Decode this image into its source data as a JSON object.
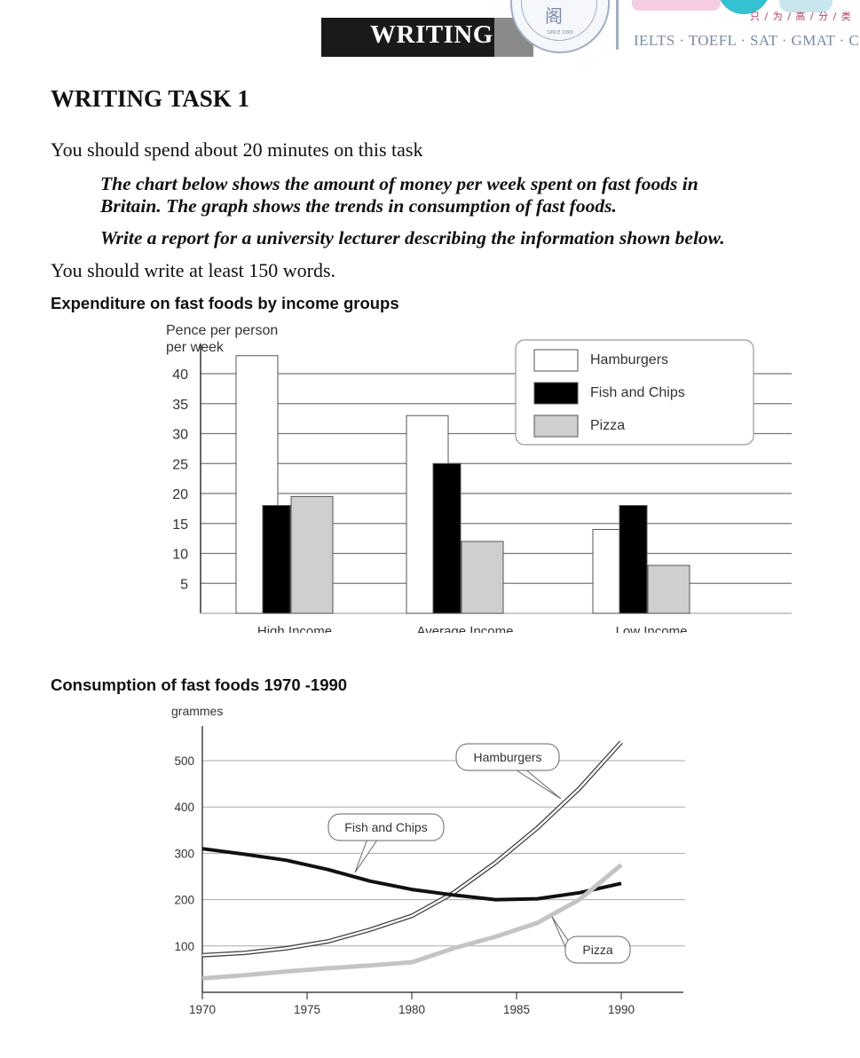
{
  "header": {
    "section_title": "WRITING",
    "seal_glyph": "阁",
    "seal_text": "SINCE 1999",
    "logo_chinese": "只 / 为 / 高 / 分 / 类",
    "tests_line": "IELTS · TOEFL · SAT · GMAT · C"
  },
  "task": {
    "title": "WRITING TASK 1",
    "time_instruction": "You should spend about 20 minutes on this task",
    "prompt_line1": "The chart below shows the amount of money per week spent on fast foods in",
    "prompt_line2": "Britain. The graph shows the trends in consumption of fast foods.",
    "prompt_line3": "Write a report for a university lecturer describing the information shown below.",
    "word_instruction": "You should write at least 150 words."
  },
  "colors": {
    "hamburgers_fill": "#ffffff",
    "fish_chips_fill": "#000000",
    "pizza_fill": "#cfcfcf",
    "header_bar": "#1a1a1a",
    "tests_text": "#7b8aa1"
  },
  "chart_data": [
    {
      "type": "bar",
      "title": "Expenditure on fast foods by income groups",
      "ylabel": "Pence per person per week",
      "ylabel_lines": [
        "Pence per person",
        "per week"
      ],
      "categories": [
        "High Income",
        "Average Income",
        "Low Income"
      ],
      "series": [
        {
          "name": "Hamburgers",
          "values": [
            43,
            33,
            14
          ]
        },
        {
          "name": "Fish and Chips",
          "values": [
            18,
            25,
            18
          ]
        },
        {
          "name": "Pizza",
          "values": [
            19.5,
            12,
            8
          ]
        }
      ],
      "ylim": [
        0,
        43
      ],
      "yticks": [
        5,
        10,
        15,
        20,
        25,
        30,
        35,
        40
      ],
      "grid": true,
      "legend_position": "top-right"
    },
    {
      "type": "line",
      "title": "Consumption of fast foods 1970 -1990",
      "ylabel": "grammes",
      "x": [
        1970,
        1972,
        1974,
        1976,
        1978,
        1980,
        1982,
        1984,
        1986,
        1988,
        1990
      ],
      "series": [
        {
          "name": "Hamburgers",
          "values": [
            80,
            85,
            95,
            110,
            135,
            165,
            215,
            280,
            355,
            440,
            540
          ]
        },
        {
          "name": "Fish and Chips",
          "values": [
            310,
            298,
            285,
            265,
            240,
            222,
            210,
            200,
            202,
            215,
            235
          ]
        },
        {
          "name": "Pizza",
          "values": [
            30,
            37,
            45,
            52,
            58,
            65,
            95,
            120,
            150,
            200,
            275
          ]
        }
      ],
      "xticks": [
        1970,
        1975,
        1980,
        1985,
        1990
      ],
      "yticks": [
        100,
        200,
        300,
        400,
        500
      ],
      "xlim": [
        1970,
        1993
      ],
      "ylim": [
        0,
        570
      ],
      "grid": true,
      "callouts": [
        "Hamburgers",
        "Fish and Chips",
        "Pizza"
      ]
    }
  ]
}
